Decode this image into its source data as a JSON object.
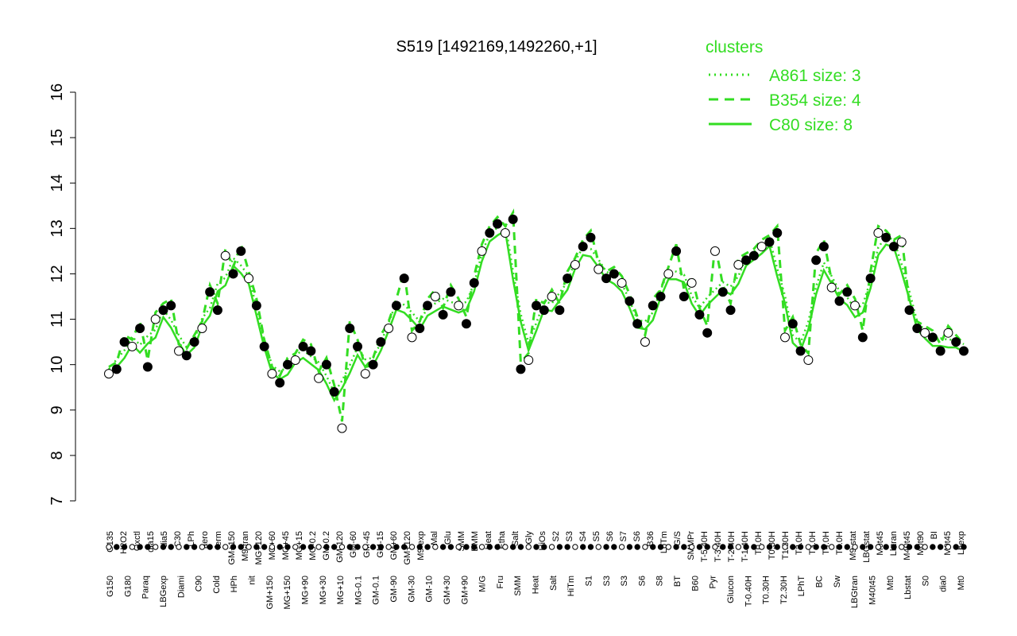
{
  "chart_data": {
    "type": "scatter",
    "title": "S519 [1492169,1492260,+1]",
    "xlabel": "",
    "ylabel": "",
    "ylim": [
      7,
      16
    ],
    "yticks": [
      7,
      8,
      9,
      10,
      11,
      12,
      13,
      14,
      15,
      16
    ],
    "grid": false,
    "legend": {
      "title": "clusters",
      "position": "top-right",
      "color": "#33dd22",
      "entries": [
        {
          "label": "A861 size: 3",
          "style": "dotted"
        },
        {
          "label": "B354 size: 4",
          "style": "dashed"
        },
        {
          "label": "C80 size: 8",
          "style": "solid"
        }
      ]
    },
    "tick_labels_upper": [
      "G135",
      "H2O2",
      "Oxctl",
      "dia15",
      "dia5",
      "C30",
      "LPh",
      "aero",
      "ferm",
      "GM+150",
      "M9-tran",
      "MG+120",
      "MG+60",
      "MG+45",
      "MG+15",
      "MG-0.2",
      "GM-0.2",
      "GM-120",
      "GM-60",
      "GM-45",
      "GM-15",
      "GM+60",
      "GM+120",
      "M9-exp",
      "Mal",
      "Glu",
      "SMM",
      "BMM",
      "Heat",
      "Etha",
      "Salt",
      "Gly",
      "HiOs",
      "S2",
      "S3",
      "S4",
      "S5",
      "S6",
      "S7",
      "S6",
      "B36",
      "LoTm",
      "G/S",
      "SMMPr",
      "T-5.40H",
      "T-3.40H",
      "T-2.40H",
      "T-1.40H",
      "T0.0H",
      "T0.30H",
      "T1.30H",
      "T2.0H",
      "T3.0H",
      "T4.0H",
      "T5.0H",
      "M9-stat",
      "LBGstat",
      "M0t45",
      "Lbtran",
      "M40t45",
      "M0t90",
      "BI",
      "M0t45",
      "Lbexp"
    ],
    "tick_labels_lower": [
      "G150",
      "G180",
      "Paraq",
      "LBGexp",
      "Diami",
      "C90",
      "Cold",
      "HPh",
      "nit",
      "GM+150",
      "MG+150",
      "MG+90",
      "MG+30",
      "MG+10",
      "MG-0.1",
      "GM-0.1",
      "GM-90",
      "GM-30",
      "GM-10",
      "GM+30",
      "GM+90",
      "M/G",
      "Fru",
      "SMM",
      "Heat",
      "Salt",
      "HiTm",
      "S1",
      "S3",
      "S3",
      "S6",
      "S8",
      "BT",
      "B60",
      "Pyr",
      "Glucon",
      "T-0.40H",
      "T0.30H",
      "T2.30H",
      "LPhT",
      "BC",
      "Sw",
      "LBGtran",
      "M40t45",
      "Mt0",
      "Lbstat",
      "S0",
      "dia0",
      "Mt0"
    ],
    "values": [
      9.8,
      9.9,
      10.5,
      10.4,
      10.8,
      9.95,
      11.0,
      11.2,
      11.3,
      10.3,
      10.2,
      10.5,
      10.8,
      11.6,
      11.2,
      12.4,
      12.0,
      12.5,
      11.9,
      11.3,
      10.4,
      9.8,
      9.6,
      10.0,
      10.1,
      10.4,
      10.3,
      9.7,
      10.0,
      9.4,
      8.6,
      10.8,
      10.4,
      9.8,
      10.0,
      10.5,
      10.8,
      11.3,
      11.9,
      10.6,
      10.8,
      11.3,
      11.5,
      11.1,
      11.6,
      11.3,
      10.9,
      11.8,
      12.5,
      12.9,
      13.1,
      12.9,
      13.2,
      9.9,
      10.1,
      11.3,
      11.2,
      11.5,
      11.2,
      11.9,
      12.2,
      12.6,
      12.8,
      12.1,
      11.9,
      12.0,
      11.8,
      11.4,
      10.9,
      10.5,
      11.3,
      11.5,
      12.0,
      12.5,
      11.5,
      11.8,
      11.1,
      10.7,
      12.5,
      11.6,
      11.2,
      12.2,
      12.3,
      12.4,
      12.6,
      12.7,
      12.9,
      10.6,
      10.9,
      10.3,
      10.1,
      12.3,
      12.6,
      11.7,
      11.4,
      11.6,
      11.3,
      10.6,
      11.9,
      12.9,
      12.8,
      12.6,
      12.7,
      11.2,
      10.8,
      10.7,
      10.6,
      10.3,
      10.7,
      10.5,
      10.3
    ]
  }
}
